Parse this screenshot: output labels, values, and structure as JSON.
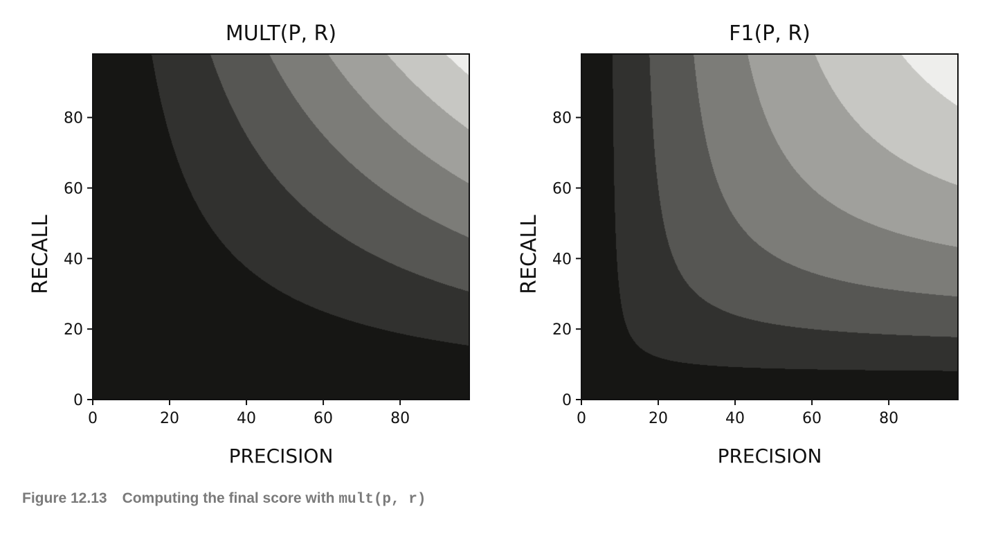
{
  "chart_data": [
    {
      "type": "heatmap",
      "plot": "contour",
      "title": "MULT(P, R)",
      "xlabel": "PRECISION",
      "ylabel": "RECALL",
      "xlim": [
        0,
        98
      ],
      "ylim": [
        0,
        98
      ],
      "xticks": [
        0,
        20,
        40,
        60,
        80
      ],
      "yticks": [
        0,
        20,
        40,
        60,
        80
      ],
      "function": "p*r/10000",
      "levels": [
        0,
        0.15,
        0.3,
        0.45,
        0.6,
        0.75,
        0.9,
        1.0
      ],
      "level_colors": [
        "#161614",
        "#31312f",
        "#565653",
        "#7c7c78",
        "#a0a09c",
        "#c7c7c3",
        "#eeeeec"
      ]
    },
    {
      "type": "heatmap",
      "plot": "contour",
      "title": "F1(P, R)",
      "xlabel": "PRECISION",
      "ylabel": "RECALL",
      "xlim": [
        0,
        98
      ],
      "ylim": [
        0,
        98
      ],
      "xticks": [
        0,
        20,
        40,
        60,
        80
      ],
      "yticks": [
        0,
        20,
        40,
        60,
        80
      ],
      "function": "2*p*r/(p+r)/100",
      "levels": [
        0,
        0.15,
        0.3,
        0.45,
        0.6,
        0.75,
        0.9,
        1.0
      ],
      "level_colors": [
        "#161614",
        "#31312f",
        "#565653",
        "#7c7c78",
        "#a0a09c",
        "#c7c7c3",
        "#eeeeec"
      ]
    }
  ],
  "caption": {
    "label": "Figure 12.13",
    "text": "Computing the final score with",
    "code": "mult(p, r)"
  }
}
